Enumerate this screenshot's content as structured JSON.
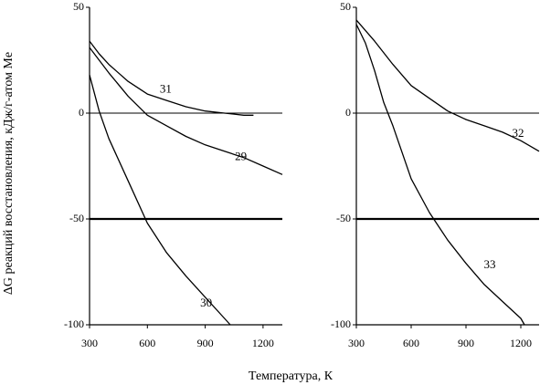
{
  "figure": {
    "xlabel": "Температура, К",
    "ylabel": "ΔG реакций восстановления, кДж/г-атом Me"
  },
  "chart_data": [
    {
      "type": "line",
      "panel": "left",
      "xlim": [
        300,
        1300
      ],
      "ylim": [
        -100,
        50
      ],
      "x_ticks": [
        300,
        600,
        900,
        1200
      ],
      "x_tick_labels": [
        "300",
        "600",
        "900",
        "1200"
      ],
      "y_ticks": [
        50,
        0,
        -50,
        -100
      ],
      "y_tick_labels": [
        "50",
        "0",
        "-50",
        "-100"
      ],
      "grid": false,
      "reference_lines": [
        0,
        -50
      ],
      "series": [
        {
          "name": "31",
          "x": [
            300,
            350,
            400,
            500,
            600,
            700,
            800,
            900,
            1000,
            1100,
            1150
          ],
          "y": [
            34,
            28,
            23,
            15,
            9,
            6,
            3,
            1,
            0,
            -1,
            -1
          ],
          "label_at": [
            695,
            11
          ]
        },
        {
          "name": "29",
          "x": [
            300,
            400,
            500,
            600,
            700,
            800,
            900,
            1000,
            1100,
            1200,
            1300
          ],
          "y": [
            31,
            19,
            8,
            -1,
            -6,
            -11,
            -15,
            -18,
            -21,
            -25,
            -29
          ],
          "label_at": [
            1085,
            -21
          ]
        },
        {
          "name": "30",
          "x": [
            300,
            350,
            400,
            500,
            600,
            700,
            800,
            900,
            1000,
            1030
          ],
          "y": [
            18,
            1,
            -12,
            -32,
            -52,
            -66,
            -77,
            -87,
            -97,
            -100
          ],
          "label_at": [
            905,
            -90
          ]
        }
      ]
    },
    {
      "type": "line",
      "panel": "right",
      "xlim": [
        300,
        1300
      ],
      "ylim": [
        -100,
        50
      ],
      "x_ticks": [
        300,
        600,
        900,
        1200
      ],
      "x_tick_labels": [
        "300",
        "600",
        "900",
        "1200"
      ],
      "y_ticks": [
        50,
        0,
        -50,
        -100
      ],
      "y_tick_labels": [
        "50",
        "0",
        "-50",
        "-100"
      ],
      "grid": false,
      "reference_lines": [
        0,
        -50
      ],
      "series": [
        {
          "name": "32",
          "x": [
            300,
            400,
            500,
            600,
            700,
            800,
            900,
            1000,
            1100,
            1200,
            1300
          ],
          "y": [
            44,
            34,
            23,
            13,
            7,
            1,
            -3,
            -6,
            -9,
            -13,
            -18
          ],
          "label_at": [
            1185,
            -10
          ]
        },
        {
          "name": "33",
          "x": [
            300,
            350,
            400,
            450,
            500,
            600,
            700,
            800,
            900,
            1000,
            1100,
            1200,
            1220
          ],
          "y": [
            42,
            33,
            20,
            5,
            -6,
            -31,
            -47,
            -60,
            -71,
            -81,
            -89,
            -97,
            -100
          ],
          "label_at": [
            1030,
            -72
          ]
        }
      ]
    }
  ]
}
